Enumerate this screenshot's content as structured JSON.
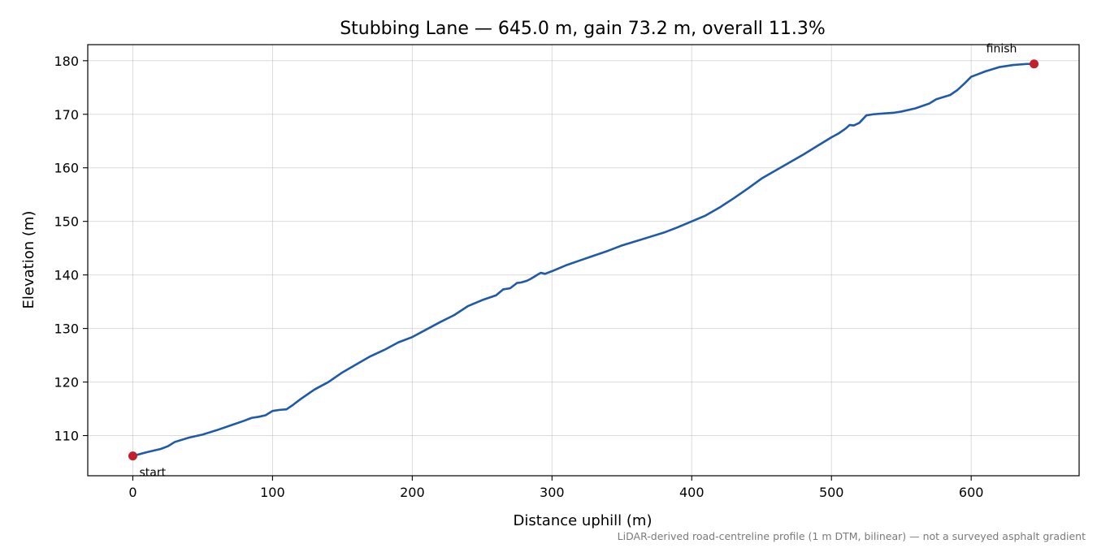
{
  "chart_data": {
    "type": "line",
    "title": "Stubbing Lane — 645.0 m, gain 73.2 m, overall 11.3%",
    "xlabel": "Distance uphill (m)",
    "ylabel": "Elevation (m)",
    "caption": "LiDAR-derived road-centreline profile (1 m DTM, bilinear) — not a surveyed asphalt gradient",
    "xlim": [
      -32.25,
      677.25
    ],
    "ylim": [
      102.5,
      183.0
    ],
    "x_ticks": [
      0,
      100,
      200,
      300,
      400,
      500,
      600
    ],
    "y_ticks": [
      110,
      120,
      130,
      140,
      150,
      160,
      170,
      180
    ],
    "grid": true,
    "series": [
      {
        "color": "#1f5aa8",
        "x": [
          0,
          10,
          20,
          25,
          30,
          40,
          50,
          60,
          70,
          80,
          85,
          90,
          95,
          100,
          105,
          110,
          115,
          120,
          130,
          140,
          150,
          160,
          170,
          180,
          190,
          200,
          210,
          220,
          230,
          240,
          250,
          260,
          265,
          270,
          275,
          278,
          282,
          285,
          290,
          292,
          295,
          300,
          310,
          320,
          330,
          340,
          350,
          360,
          370,
          380,
          390,
          400,
          410,
          420,
          430,
          440,
          450,
          460,
          470,
          480,
          490,
          500,
          505,
          510,
          513,
          516,
          520,
          525,
          530,
          535,
          540,
          545,
          550,
          560,
          570,
          575,
          580,
          585,
          590,
          595,
          600,
          605,
          610,
          620,
          630,
          640,
          645
        ],
        "y": [
          106.2,
          106.9,
          107.5,
          108.0,
          108.8,
          109.6,
          110.2,
          111.0,
          111.9,
          112.8,
          113.3,
          113.5,
          113.8,
          114.6,
          114.8,
          114.9,
          115.8,
          116.8,
          118.6,
          120.0,
          121.8,
          123.3,
          124.8,
          126.0,
          127.4,
          128.4,
          129.8,
          131.2,
          132.5,
          134.2,
          135.3,
          136.2,
          137.3,
          137.5,
          138.5,
          138.6,
          138.9,
          139.3,
          140.1,
          140.4,
          140.2,
          140.7,
          141.8,
          142.7,
          143.6,
          144.5,
          145.5,
          146.3,
          147.1,
          147.9,
          148.9,
          150.0,
          151.1,
          152.6,
          154.3,
          156.1,
          158.0,
          159.5,
          161.0,
          162.5,
          164.1,
          165.7,
          166.4,
          167.3,
          168.0,
          167.9,
          168.4,
          169.8,
          170.0,
          170.1,
          170.2,
          170.3,
          170.5,
          171.1,
          172.0,
          172.8,
          173.2,
          173.6,
          174.5,
          175.7,
          177.0,
          177.5,
          178.0,
          178.8,
          179.2,
          179.4,
          179.4
        ]
      }
    ],
    "markers": [
      {
        "x": 0,
        "y": 106.2,
        "label": "start",
        "color": "#c1202d"
      },
      {
        "x": 645,
        "y": 179.4,
        "label": "finish",
        "color": "#c1202d"
      }
    ]
  }
}
